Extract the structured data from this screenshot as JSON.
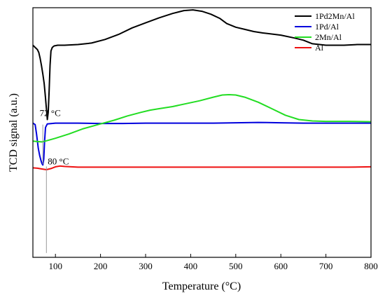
{
  "chart_data": {
    "type": "line",
    "title": "",
    "xlabel": "Temperature (°C)",
    "ylabel": "TCD signal (a.u.)",
    "xlim": [
      50,
      800
    ],
    "xticks": [
      100,
      200,
      300,
      400,
      500,
      600,
      700,
      800
    ],
    "y_units": "arbitrary (stacked traces, no tick labels)",
    "legend_position": "top-right",
    "grid": false,
    "series": [
      {
        "name": "1Pd2Mn/Al",
        "color": "#000000",
        "points": [
          [
            50,
            0.52
          ],
          [
            55,
            0.55
          ],
          [
            60,
            0.58
          ],
          [
            63,
            0.62
          ],
          [
            66,
            0.7
          ],
          [
            69,
            0.8
          ],
          [
            72,
            0.92
          ],
          [
            75,
            1.05
          ],
          [
            78,
            1.25
          ],
          [
            80,
            1.4
          ],
          [
            82,
            1.55
          ],
          [
            84,
            1.45
          ],
          [
            86,
            1.15
          ],
          [
            88,
            0.8
          ],
          [
            90,
            0.6
          ],
          [
            93,
            0.55
          ],
          [
            97,
            0.53
          ],
          [
            105,
            0.52
          ],
          [
            120,
            0.52
          ],
          [
            150,
            0.51
          ],
          [
            180,
            0.49
          ],
          [
            210,
            0.44
          ],
          [
            240,
            0.37
          ],
          [
            270,
            0.28
          ],
          [
            300,
            0.21
          ],
          [
            330,
            0.14
          ],
          [
            360,
            0.08
          ],
          [
            385,
            0.04
          ],
          [
            405,
            0.03
          ],
          [
            425,
            0.05
          ],
          [
            445,
            0.09
          ],
          [
            465,
            0.15
          ],
          [
            480,
            0.22
          ],
          [
            500,
            0.27
          ],
          [
            520,
            0.3
          ],
          [
            540,
            0.33
          ],
          [
            560,
            0.35
          ],
          [
            600,
            0.38
          ],
          [
            630,
            0.42
          ],
          [
            650,
            0.45
          ],
          [
            670,
            0.5
          ],
          [
            700,
            0.52
          ],
          [
            740,
            0.52
          ],
          [
            770,
            0.51
          ],
          [
            800,
            0.51
          ]
        ]
      },
      {
        "name": "1Pd/Al",
        "color": "#0000dd",
        "points": [
          [
            50,
            1.6
          ],
          [
            55,
            1.62
          ],
          [
            58,
            1.75
          ],
          [
            62,
            1.95
          ],
          [
            65,
            2.05
          ],
          [
            68,
            2.12
          ],
          [
            70,
            2.16
          ],
          [
            72,
            2.18
          ],
          [
            74,
            2.1
          ],
          [
            76,
            1.85
          ],
          [
            78,
            1.66
          ],
          [
            82,
            1.61
          ],
          [
            100,
            1.6
          ],
          [
            150,
            1.6
          ],
          [
            200,
            1.605
          ],
          [
            250,
            1.605
          ],
          [
            300,
            1.6
          ],
          [
            350,
            1.6
          ],
          [
            400,
            1.6
          ],
          [
            450,
            1.6
          ],
          [
            500,
            1.595
          ],
          [
            550,
            1.59
          ],
          [
            600,
            1.595
          ],
          [
            650,
            1.6
          ],
          [
            700,
            1.6
          ],
          [
            750,
            1.6
          ],
          [
            800,
            1.6
          ]
        ]
      },
      {
        "name": "2Mn/Al",
        "color": "#22dd22",
        "points": [
          [
            50,
            1.85
          ],
          [
            60,
            1.855
          ],
          [
            70,
            1.86
          ],
          [
            80,
            1.845
          ],
          [
            100,
            1.81
          ],
          [
            130,
            1.75
          ],
          [
            160,
            1.68
          ],
          [
            200,
            1.61
          ],
          [
            230,
            1.56
          ],
          [
            260,
            1.5
          ],
          [
            290,
            1.45
          ],
          [
            310,
            1.42
          ],
          [
            330,
            1.4
          ],
          [
            360,
            1.37
          ],
          [
            390,
            1.33
          ],
          [
            420,
            1.29
          ],
          [
            450,
            1.24
          ],
          [
            470,
            1.21
          ],
          [
            485,
            1.205
          ],
          [
            500,
            1.21
          ],
          [
            520,
            1.24
          ],
          [
            550,
            1.31
          ],
          [
            580,
            1.4
          ],
          [
            610,
            1.49
          ],
          [
            640,
            1.55
          ],
          [
            670,
            1.57
          ],
          [
            700,
            1.575
          ],
          [
            750,
            1.575
          ],
          [
            800,
            1.58
          ]
        ]
      },
      {
        "name": "Al",
        "color": "#ee1111",
        "points": [
          [
            50,
            2.22
          ],
          [
            60,
            2.225
          ],
          [
            70,
            2.235
          ],
          [
            80,
            2.245
          ],
          [
            90,
            2.23
          ],
          [
            100,
            2.205
          ],
          [
            110,
            2.195
          ],
          [
            120,
            2.2
          ],
          [
            150,
            2.21
          ],
          [
            200,
            2.21
          ],
          [
            250,
            2.21
          ],
          [
            300,
            2.21
          ],
          [
            350,
            2.21
          ],
          [
            400,
            2.21
          ],
          [
            450,
            2.21
          ],
          [
            500,
            2.21
          ],
          [
            550,
            2.21
          ],
          [
            600,
            2.21
          ],
          [
            650,
            2.21
          ],
          [
            700,
            2.21
          ],
          [
            750,
            2.21
          ],
          [
            800,
            2.205
          ]
        ]
      }
    ],
    "annotations": [
      {
        "text": "72 °C",
        "x": 72
      },
      {
        "text": "80 °C",
        "x": 80
      }
    ]
  }
}
